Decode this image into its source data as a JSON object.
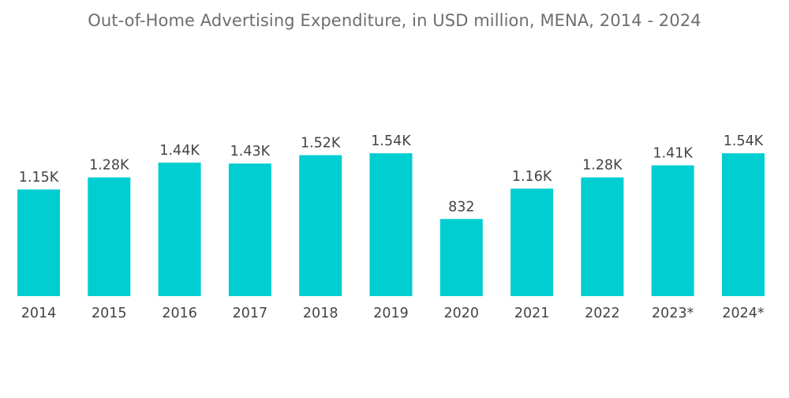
{
  "chart_data": {
    "type": "bar",
    "title": "Out-of-Home Advertising Expenditure, in USD million, MENA, 2014 - 2024",
    "xlabel": "",
    "ylabel": "",
    "ylim": [
      0,
      1720
    ],
    "grid": false,
    "legend": "none",
    "color": "#00ced1",
    "categories": [
      "2014",
      "2015",
      "2016",
      "2017",
      "2018",
      "2019",
      "2020",
      "2021",
      "2022",
      "2023*",
      "2024*"
    ],
    "values": [
      1150,
      1280,
      1440,
      1430,
      1520,
      1540,
      832,
      1160,
      1280,
      1410,
      1540
    ],
    "value_labels": [
      "1.15K",
      "1.28K",
      "1.44K",
      "1.43K",
      "1.52K",
      "1.54K",
      "832",
      "1.16K",
      "1.28K",
      "1.41K",
      "1.54K"
    ]
  }
}
